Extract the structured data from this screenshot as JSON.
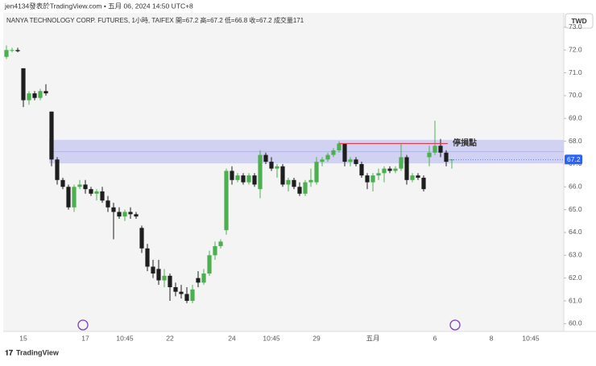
{
  "chart_data": {
    "type": "candlestick",
    "attribution": "jen4134發表於TradingView.com • 五月 06, 2024 14:50 UTC+8",
    "legend": "NANYA TECHNOLOGY CORP. FUTURES, 1小時, TAIFEX  開=67.2  高=67.2  低=66.8  收=67.2  成交量171",
    "currency": "TWD",
    "brand": "TradingView",
    "categories": [
      null,
      null,
      null,
      "15",
      null,
      null,
      null,
      null,
      null,
      null,
      null,
      null,
      null,
      null,
      "17",
      null,
      null,
      null,
      null,
      null,
      null,
      "10:45",
      null,
      null,
      null,
      null,
      null,
      null,
      null,
      "22",
      null,
      null,
      null,
      null,
      null,
      null,
      null,
      null,
      null,
      null,
      "24",
      null,
      null,
      null,
      null,
      null,
      null,
      "10:45",
      null,
      null,
      null,
      null,
      null,
      null,
      null,
      "29",
      null,
      null,
      null,
      null,
      null,
      null,
      null,
      null,
      null,
      "五月",
      null,
      null,
      null,
      null,
      null,
      null,
      null,
      null,
      null,
      null,
      "6",
      null,
      null,
      null,
      null,
      null,
      null,
      null,
      null,
      null,
      "8",
      null,
      null,
      null,
      null,
      null,
      null,
      "10:45",
      null,
      null,
      null,
      null
    ],
    "open": [
      71.7,
      72.0,
      72.0,
      71.2,
      69.8,
      70.1,
      69.9,
      70.2,
      69.3,
      67.2,
      66.3,
      66.0,
      65.1,
      66.0,
      66.1,
      65.9,
      65.7,
      65.8,
      65.4,
      65.1,
      64.9,
      64.7,
      64.9,
      64.8,
      64.2,
      63.3,
      62.5,
      62.4,
      61.9,
      62.1,
      61.6,
      61.4,
      61.3,
      61.0,
      62.0,
      61.8,
      62.2,
      63.0,
      63.4,
      64.1,
      66.7,
      66.3,
      66.5,
      66.2,
      66.5,
      65.9,
      67.4,
      67.1,
      66.8,
      66.9,
      66.1,
      66.3,
      66.0,
      65.7,
      66.2,
      66.2,
      67.1,
      67.2,
      67.4,
      67.6,
      67.9,
      67.1,
      67.2,
      67.0,
      66.5,
      66.2,
      66.5,
      66.6,
      66.8,
      66.7,
      66.8,
      67.3,
      66.3,
      66.5,
      66.4,
      67.3,
      67.5,
      67.8,
      67.5,
      67.2,
      null,
      null,
      null,
      null,
      null,
      null,
      null,
      null,
      null,
      null,
      null,
      null,
      null,
      null,
      null,
      null,
      null,
      null
    ],
    "high": [
      72.2,
      72.1,
      72.1,
      71.2,
      70.2,
      70.2,
      70.3,
      70.5,
      69.3,
      67.3,
      66.4,
      66.1,
      66.1,
      66.3,
      66.3,
      66.0,
      65.9,
      66.0,
      65.6,
      65.3,
      65.1,
      65.0,
      65.1,
      64.9,
      64.3,
      63.5,
      62.8,
      62.8,
      62.4,
      62.2,
      61.8,
      61.7,
      61.6,
      61.7,
      62.3,
      62.4,
      63.2,
      63.6,
      63.7,
      66.8,
      66.9,
      66.6,
      66.6,
      66.6,
      66.6,
      67.6,
      67.5,
      67.3,
      67.0,
      67.0,
      66.4,
      66.4,
      66.2,
      66.3,
      66.8,
      67.3,
      67.3,
      67.5,
      67.7,
      68.0,
      67.9,
      67.3,
      67.3,
      67.1,
      66.6,
      66.6,
      66.8,
      66.9,
      66.9,
      66.9,
      67.9,
      67.4,
      66.6,
      66.6,
      66.5,
      67.8,
      68.9,
      68.1,
      67.6,
      67.2,
      null,
      null,
      null,
      null,
      null,
      null,
      null,
      null,
      null,
      null,
      null,
      null,
      null,
      null,
      null,
      null,
      null,
      null
    ],
    "low": [
      71.6,
      71.9,
      71.9,
      69.5,
      69.6,
      69.8,
      69.8,
      70.0,
      66.9,
      66.1,
      65.9,
      65.0,
      64.9,
      65.9,
      65.7,
      65.6,
      65.4,
      65.3,
      64.9,
      63.7,
      64.6,
      64.5,
      64.6,
      64.6,
      63.1,
      62.3,
      62.0,
      61.7,
      61.6,
      61.0,
      61.2,
      61.1,
      60.9,
      60.9,
      61.6,
      61.7,
      62.1,
      62.8,
      63.3,
      63.9,
      66.1,
      66.2,
      66.1,
      66.1,
      66.0,
      65.5,
      67.0,
      66.7,
      66.4,
      66.0,
      65.8,
      65.9,
      65.6,
      65.6,
      66.0,
      66.1,
      66.9,
      67.1,
      67.3,
      67.5,
      66.9,
      66.9,
      66.9,
      66.4,
      65.9,
      65.8,
      66.3,
      66.2,
      66.6,
      66.6,
      66.7,
      66.1,
      66.2,
      66.3,
      65.8,
      66.9,
      67.4,
      67.3,
      66.9,
      66.8,
      null,
      null,
      null,
      null,
      null,
      null,
      null,
      null,
      null,
      null,
      null,
      null,
      null,
      null,
      null,
      null,
      null,
      null
    ],
    "close": [
      72.0,
      72.0,
      71.95,
      69.8,
      70.1,
      69.9,
      70.2,
      70.1,
      67.2,
      66.3,
      66.0,
      65.1,
      66.0,
      66.1,
      65.9,
      65.7,
      65.8,
      65.4,
      65.1,
      64.9,
      64.7,
      64.9,
      64.8,
      64.7,
      63.3,
      62.5,
      62.2,
      61.9,
      62.1,
      61.6,
      61.4,
      61.3,
      61.0,
      61.5,
      61.8,
      62.2,
      63.0,
      63.4,
      63.6,
      66.7,
      66.3,
      66.5,
      66.2,
      66.5,
      66.1,
      67.4,
      67.1,
      66.8,
      66.9,
      66.1,
      66.3,
      66.0,
      65.7,
      66.2,
      66.3,
      67.1,
      67.2,
      67.4,
      67.6,
      67.9,
      67.1,
      67.2,
      67.0,
      66.5,
      66.2,
      66.5,
      66.6,
      66.8,
      66.7,
      66.8,
      67.3,
      66.3,
      66.5,
      66.4,
      65.9,
      67.5,
      67.8,
      67.5,
      67.1,
      67.2,
      null,
      null,
      null,
      null,
      null,
      null,
      null,
      null,
      null,
      null,
      null,
      null,
      null,
      null,
      null,
      null,
      null,
      null
    ],
    "up_color": "#4caf50",
    "down_color": "#1e1e1e",
    "ylim": [
      59.66,
      73.63
    ],
    "yticks": [
      {
        "value": 73,
        "label": "73.0"
      },
      {
        "value": 72,
        "label": "72.0"
      },
      {
        "value": 71,
        "label": "71.0"
      },
      {
        "value": 70,
        "label": "70.0"
      },
      {
        "value": 69,
        "label": "69.0"
      },
      {
        "value": 68,
        "label": "68.0"
      },
      {
        "value": 67,
        "label": "67.0"
      },
      {
        "value": 66,
        "label": "66.0"
      },
      {
        "value": 65,
        "label": "65.0"
      },
      {
        "value": 64,
        "label": "64.0"
      },
      {
        "value": 63,
        "label": "63.0"
      },
      {
        "value": 62,
        "label": "62.0"
      },
      {
        "value": 61,
        "label": "61.0"
      },
      {
        "value": 60,
        "label": "60.0"
      }
    ],
    "grid": false,
    "last_price": 67.2,
    "last_price_color": "#2962ff",
    "zone": {
      "low": 67.03,
      "high": 68.06,
      "color": "#c5c7f2"
    },
    "stop_line": {
      "value": 67.9,
      "label": "停損點",
      "color": "#e5394f"
    }
  }
}
